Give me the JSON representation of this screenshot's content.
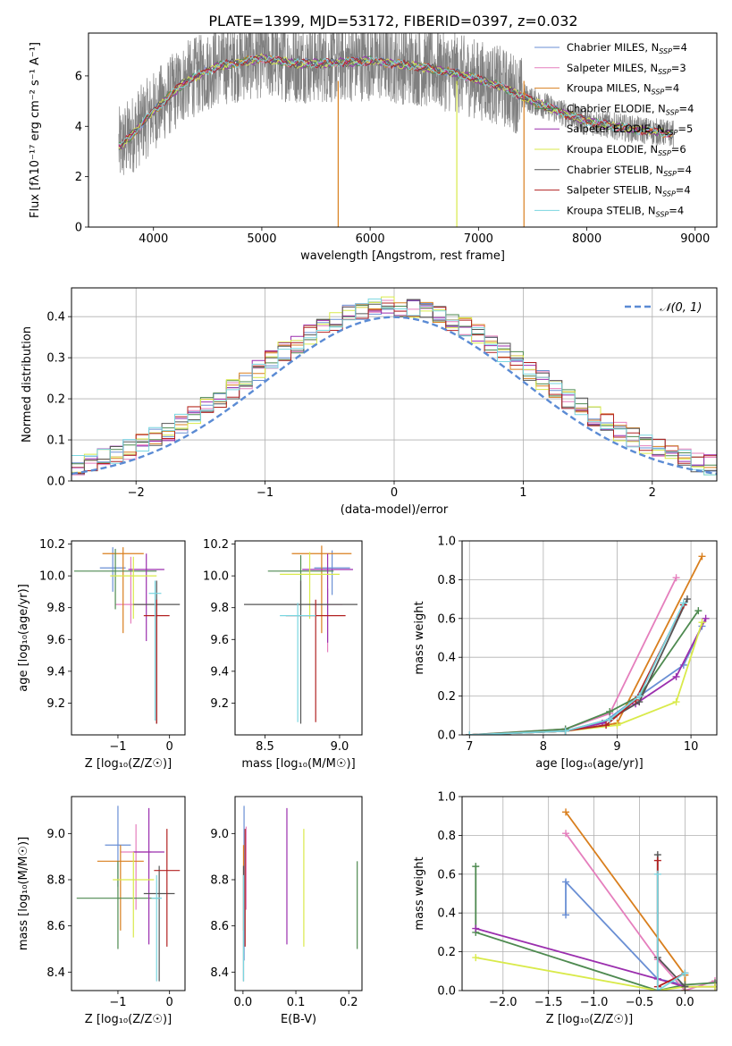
{
  "figure_title": "PLATE=1399, MJD=53172, FIBERID=0397, z=0.032",
  "chart_data": [
    {
      "type": "line",
      "name": "spectrum",
      "xlabel": "wavelength [Angstrom, rest frame]",
      "ylabel": "Flux [fλ10⁻¹⁷ erg cm⁻² s⁻¹ A⁻¹]",
      "xlim": [
        3400,
        9200
      ],
      "ylim": [
        0,
        7.7
      ],
      "xticks": [
        4000,
        5000,
        6000,
        7000,
        8000,
        9000
      ],
      "yticks": [
        0,
        2,
        4,
        6
      ],
      "legend_position": "top-right",
      "data_wavelength": [
        3700,
        4000,
        4300,
        4600,
        5000,
        5300,
        5600,
        6000,
        6400,
        6800,
        7200,
        7500,
        7800,
        8000,
        8400,
        8800
      ],
      "data_flux": [
        3.2,
        4.6,
        5.8,
        6.4,
        6.7,
        6.5,
        6.5,
        6.6,
        6.4,
        6.1,
        5.6,
        5.0,
        4.5,
        4.2,
        3.9,
        3.7
      ],
      "series": [
        {
          "name": "Chabrier MILES, N",
          "sub": "SSP",
          "suffix": "=4",
          "color": "#6a8fd4"
        },
        {
          "name": "Salpeter MILES, N",
          "sub": "SSP",
          "suffix": "=3",
          "color": "#e57fbd"
        },
        {
          "name": "Kroupa MILES, N",
          "sub": "SSP",
          "suffix": "=4",
          "color": "#d97f1e"
        },
        {
          "name": "Chabrier ELODIE, N",
          "sub": "SSP",
          "suffix": "=4",
          "color": "#4e8a50"
        },
        {
          "name": "Salpeter ELODIE, N",
          "sub": "SSP",
          "suffix": "=5",
          "color": "#9b2fae"
        },
        {
          "name": "Kroupa ELODIE, N",
          "sub": "SSP",
          "suffix": "=6",
          "color": "#d9ea4a"
        },
        {
          "name": "Chabrier STELIB, N",
          "sub": "SSP",
          "suffix": "=4",
          "color": "#555555"
        },
        {
          "name": "Salpeter STELIB, N",
          "sub": "SSP",
          "suffix": "=4",
          "color": "#b22222"
        },
        {
          "name": "Kroupa STELIB, N",
          "sub": "SSP",
          "suffix": "=4",
          "color": "#7ad6e0"
        }
      ]
    },
    {
      "type": "histogram",
      "name": "residuals",
      "xlabel": "(data-model)/error",
      "ylabel": "Normed distribution",
      "xlim": [
        -2.5,
        2.5
      ],
      "ylim": [
        0,
        0.47
      ],
      "xticks": [
        -2,
        -1,
        0,
        1,
        2
      ],
      "yticks": [
        0.0,
        0.1,
        0.2,
        0.3,
        0.4
      ],
      "grid": true,
      "legend": "𝒩(0, 1)",
      "legend_position": "top-right",
      "gaussian": {
        "mean": 0,
        "sigma": 1
      }
    },
    {
      "type": "scatter",
      "name": "age-vs-Z",
      "xlabel": "Z [log₁₀(Z/Z☉)]",
      "ylabel": "age  [log₁₀(age/yr)]",
      "xlim": [
        -1.9,
        0.3
      ],
      "ylim": [
        9.0,
        10.22
      ],
      "xticks": [
        -1,
        0
      ],
      "yticks": [
        9.2,
        9.4,
        9.6,
        9.8,
        10.0,
        10.2
      ],
      "points": [
        {
          "x": -1.1,
          "xerr": 0.25,
          "y": 10.05,
          "yerr": [
            0.15,
            0.13
          ],
          "color": "#6a8fd4"
        },
        {
          "x": -0.75,
          "xerr": 0.3,
          "y": 9.82,
          "yerr": [
            0.12,
            0.3
          ],
          "color": "#e57fbd"
        },
        {
          "x": -0.9,
          "xerr": 0.4,
          "y": 10.14,
          "yerr": [
            0.5,
            0.04
          ],
          "color": "#d97f1e"
        },
        {
          "x": -1.05,
          "xerr": 0.8,
          "y": 10.03,
          "yerr": [
            0.24,
            0.14
          ],
          "color": "#4e8a50"
        },
        {
          "x": -0.45,
          "xerr": 0.35,
          "y": 10.04,
          "yerr": [
            0.45,
            0.1
          ],
          "color": "#9b2fae"
        },
        {
          "x": -0.7,
          "xerr": 0.45,
          "y": 10.0,
          "yerr": [
            0.27,
            0.12
          ],
          "color": "#d9ea4a"
        },
        {
          "x": -0.25,
          "xerr": 0.45,
          "y": 9.82,
          "yerr": [
            0.75,
            0.15
          ],
          "color": "#555555"
        },
        {
          "x": -0.25,
          "xerr": 0.25,
          "y": 9.75,
          "yerr": [
            0.68,
            0.1
          ],
          "color": "#b22222"
        },
        {
          "x": -0.28,
          "xerr": 0.12,
          "y": 9.89,
          "yerr": [
            0.8,
            0.08
          ],
          "color": "#7ad6e0"
        }
      ]
    },
    {
      "type": "scatter",
      "name": "age-vs-mass",
      "xlabel": "mass [log₁₀(M/M☉)]",
      "ylabel": "",
      "xlim": [
        8.3,
        9.15
      ],
      "ylim": [
        9.0,
        10.22
      ],
      "xticks": [
        8.5,
        9.0
      ],
      "yticks": [
        9.2,
        9.4,
        9.6,
        9.8,
        10.0,
        10.2
      ],
      "points": [
        {
          "x": 8.95,
          "xerr": 0.12,
          "y": 10.05,
          "yerr": [
            0.17,
            0.11
          ],
          "color": "#6a8fd4"
        },
        {
          "x": 8.92,
          "xerr": 0.1,
          "y": 9.82,
          "yerr": [
            0.3,
            0.1
          ],
          "color": "#e57fbd"
        },
        {
          "x": 8.88,
          "xerr": 0.2,
          "y": 10.14,
          "yerr": [
            0.5,
            0.05
          ],
          "color": "#d97f1e"
        },
        {
          "x": 8.74,
          "xerr": 0.22,
          "y": 10.03,
          "yerr": [
            0.25,
            0.1
          ],
          "color": "#4e8a50"
        },
        {
          "x": 8.92,
          "xerr": 0.17,
          "y": 10.04,
          "yerr": [
            0.46,
            0.1
          ],
          "color": "#9b2fae"
        },
        {
          "x": 8.8,
          "xerr": 0.2,
          "y": 10.01,
          "yerr": [
            0.28,
            0.14
          ],
          "color": "#d9ea4a"
        },
        {
          "x": 8.74,
          "xerr": 0.38,
          "y": 9.82,
          "yerr": [
            0.75,
            0.15
          ],
          "color": "#555555"
        },
        {
          "x": 8.84,
          "xerr": 0.2,
          "y": 9.75,
          "yerr": [
            0.67,
            0.1
          ],
          "color": "#b22222"
        },
        {
          "x": 8.72,
          "xerr": 0.12,
          "y": 9.75,
          "yerr": [
            0.67,
            0.08
          ],
          "color": "#7ad6e0"
        }
      ]
    },
    {
      "type": "line",
      "name": "mass-weight-vs-age",
      "xlabel": "age  [log₁₀(age/yr)]",
      "ylabel": "mass weight",
      "xlim": [
        6.9,
        10.35
      ],
      "ylim": [
        0,
        1.0
      ],
      "xticks": [
        7,
        8,
        9,
        10
      ],
      "yticks": [
        0.0,
        0.2,
        0.4,
        0.6,
        0.8,
        1.0
      ],
      "grid": true,
      "series": [
        {
          "color": "#6a8fd4",
          "x": [
            7.0,
            8.3,
            8.8,
            9.3,
            9.9,
            10.15
          ],
          "y": [
            0.0,
            0.02,
            0.06,
            0.2,
            0.36,
            0.56
          ]
        },
        {
          "color": "#e57fbd",
          "x": [
            7.0,
            8.3,
            8.9,
            9.8
          ],
          "y": [
            0.0,
            0.03,
            0.11,
            0.81
          ]
        },
        {
          "color": "#d97f1e",
          "x": [
            7.0,
            8.3,
            9.0,
            10.15
          ],
          "y": [
            0.0,
            0.02,
            0.06,
            0.92
          ]
        },
        {
          "color": "#4e8a50",
          "x": [
            7.0,
            8.3,
            8.9,
            9.3,
            10.1
          ],
          "y": [
            0.0,
            0.03,
            0.12,
            0.2,
            0.64
          ]
        },
        {
          "color": "#9b2fae",
          "x": [
            7.0,
            8.3,
            8.8,
            9.25,
            9.8,
            10.2
          ],
          "y": [
            0.0,
            0.02,
            0.06,
            0.16,
            0.3,
            0.6
          ]
        },
        {
          "color": "#d9ea4a",
          "x": [
            7.0,
            8.3,
            9.0,
            9.8,
            10.15
          ],
          "y": [
            0.0,
            0.02,
            0.05,
            0.17,
            0.58
          ]
        },
        {
          "color": "#555555",
          "x": [
            7.0,
            8.3,
            8.9,
            9.3,
            9.95
          ],
          "y": [
            0.0,
            0.02,
            0.08,
            0.17,
            0.7
          ]
        },
        {
          "color": "#b22222",
          "x": [
            7.0,
            8.3,
            8.85,
            9.25,
            9.9
          ],
          "y": [
            0.0,
            0.02,
            0.05,
            0.18,
            0.67
          ]
        },
        {
          "color": "#7ad6e0",
          "x": [
            7.0,
            8.3,
            8.9,
            9.3,
            9.9
          ],
          "y": [
            0.0,
            0.02,
            0.08,
            0.2,
            0.68
          ]
        }
      ]
    },
    {
      "type": "scatter",
      "name": "mass-vs-Z",
      "xlabel": "Z [log₁₀(Z/Z☉)]",
      "ylabel": "mass [log₁₀(M/M☉)]",
      "xlim": [
        -1.9,
        0.3
      ],
      "ylim": [
        8.32,
        9.16
      ],
      "xticks": [
        -1,
        0
      ],
      "yticks": [
        8.4,
        8.6,
        8.8,
        9.0
      ],
      "points": [
        {
          "x": -1.0,
          "xerr": 0.25,
          "y": 8.95,
          "yerr": [
            0.18,
            0.17
          ],
          "color": "#6a8fd4"
        },
        {
          "x": -0.65,
          "xerr": 0.3,
          "y": 8.92,
          "yerr": [
            0.25,
            0.12
          ],
          "color": "#e57fbd"
        },
        {
          "x": -0.95,
          "xerr": 0.45,
          "y": 8.88,
          "yerr": [
            0.3,
            0.07
          ],
          "color": "#d97f1e"
        },
        {
          "x": -1.0,
          "xerr": 0.8,
          "y": 8.72,
          "yerr": [
            0.22,
            0.16
          ],
          "color": "#4e8a50"
        },
        {
          "x": -0.4,
          "xerr": 0.3,
          "y": 8.92,
          "yerr": [
            0.4,
            0.19
          ],
          "color": "#9b2fae"
        },
        {
          "x": -0.7,
          "xerr": 0.4,
          "y": 8.8,
          "yerr": [
            0.25,
            0.12
          ],
          "color": "#d9ea4a"
        },
        {
          "x": -0.2,
          "xerr": 0.3,
          "y": 8.74,
          "yerr": [
            0.38,
            0.12
          ],
          "color": "#555555"
        },
        {
          "x": -0.05,
          "xerr": 0.25,
          "y": 8.84,
          "yerr": [
            0.33,
            0.18
          ],
          "color": "#b22222"
        },
        {
          "x": -0.25,
          "xerr": 0.1,
          "y": 8.72,
          "yerr": [
            0.36,
            0.1
          ],
          "color": "#7ad6e0"
        }
      ]
    },
    {
      "type": "scatter",
      "name": "mass-vs-EBV",
      "xlabel": "E(B-V)",
      "ylabel": "",
      "xlim": [
        -0.015,
        0.225
      ],
      "ylim": [
        8.32,
        9.16
      ],
      "xticks": [
        0.0,
        0.1,
        0.2
      ],
      "yticks": [
        8.4,
        8.6,
        8.8,
        9.0
      ],
      "points": [
        {
          "x": 0.002,
          "y": 8.95,
          "yerr": [
            0.5,
            0.17
          ],
          "color": "#6a8fd4"
        },
        {
          "x": 0.006,
          "y": 8.92,
          "yerr": [
            0.25,
            0.11
          ],
          "color": "#e57fbd"
        },
        {
          "x": 0.001,
          "y": 8.88,
          "yerr": [
            0.3,
            0.07
          ],
          "color": "#d97f1e"
        },
        {
          "x": 0.216,
          "y": 8.72,
          "yerr": [
            0.22,
            0.16
          ],
          "color": "#4e8a50"
        },
        {
          "x": 0.083,
          "y": 8.92,
          "yerr": [
            0.4,
            0.19
          ],
          "color": "#9b2fae"
        },
        {
          "x": 0.115,
          "y": 8.8,
          "yerr": [
            0.29,
            0.22
          ],
          "color": "#d9ea4a"
        },
        {
          "x": 0.001,
          "y": 8.74,
          "yerr": [
            0.38,
            0.12
          ],
          "color": "#555555"
        },
        {
          "x": 0.004,
          "y": 8.84,
          "yerr": [
            0.33,
            0.18
          ],
          "color": "#b22222"
        },
        {
          "x": 0.001,
          "y": 8.72,
          "yerr": [
            0.36,
            0.1
          ],
          "color": "#7ad6e0"
        }
      ]
    },
    {
      "type": "line",
      "name": "mass-weight-vs-Z",
      "xlabel": "Z [log₁₀(Z/Z☉)]",
      "ylabel": "mass weight",
      "xlim": [
        -2.45,
        0.35
      ],
      "ylim": [
        0,
        1.0
      ],
      "xticks": [
        -2.0,
        -1.5,
        -1.0,
        -0.5,
        0.0
      ],
      "yticks": [
        0.0,
        0.2,
        0.4,
        0.6,
        0.8,
        1.0
      ],
      "grid": true,
      "series": [
        {
          "color": "#6a8fd4",
          "x": [
            -1.31,
            -1.31,
            -0.3,
            0.0
          ],
          "y": [
            0.39,
            0.56,
            0.06,
            0.03
          ]
        },
        {
          "color": "#e57fbd",
          "x": [
            -1.31,
            -0.3,
            0.0,
            0.33
          ],
          "y": [
            0.81,
            0.16,
            0.0,
            0.05
          ]
        },
        {
          "color": "#d97f1e",
          "x": [
            -1.31,
            0.0,
            0.0
          ],
          "y": [
            0.92,
            0.08,
            0.0
          ]
        },
        {
          "color": "#4e8a50",
          "x": [
            -2.3,
            -2.3,
            -0.3,
            0.0,
            0.33
          ],
          "y": [
            0.64,
            0.3,
            0.0,
            0.03,
            0.04
          ]
        },
        {
          "color": "#9b2fae",
          "x": [
            -2.3,
            -0.3,
            0.0,
            0.33
          ],
          "y": [
            0.32,
            0.06,
            0.02,
            0.02
          ]
        },
        {
          "color": "#d9ea4a",
          "x": [
            -2.3,
            -0.3,
            0.0,
            0.33
          ],
          "y": [
            0.17,
            0.0,
            0.02,
            0.02
          ]
        },
        {
          "color": "#555555",
          "x": [
            -0.3,
            -0.3,
            0.0
          ],
          "y": [
            0.7,
            0.17,
            0.02
          ]
        },
        {
          "color": "#b22222",
          "x": [
            -0.3,
            -0.3,
            0.0
          ],
          "y": [
            0.67,
            0.02,
            0.09
          ]
        },
        {
          "color": "#7ad6e0",
          "x": [
            -0.3,
            -0.3,
            0.0
          ],
          "y": [
            0.6,
            0.0,
            0.09
          ]
        }
      ]
    }
  ]
}
